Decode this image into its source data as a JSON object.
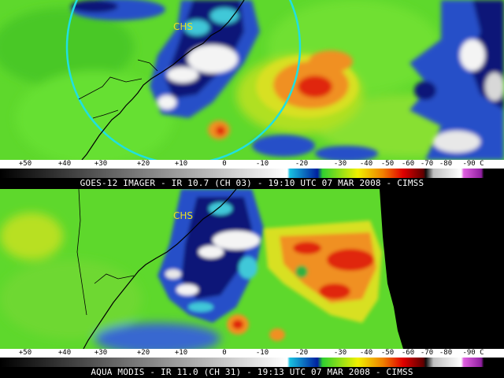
{
  "panels": [
    {
      "station_label": "CHS",
      "caption": "GOES-12 IMAGER - IR 10.7 (CH 03) - 19:10 UTC 07 MAR 2008 - CIMSS"
    },
    {
      "station_label": "CHS",
      "caption": "AQUA MODIS - IR 11.0 (CH 31) - 19:13 UTC 07 MAR 2008 - CIMSS"
    }
  ],
  "colorbar": {
    "tick_labels": [
      "+50",
      "+40",
      "+30",
      "+20",
      "+10",
      "0",
      "-10",
      "-20",
      "-30",
      "-40",
      "-50",
      "-60",
      "-70",
      "-80",
      "-90 C"
    ],
    "colors": {
      "warm_gray_start": "#000000",
      "warm_gray_end": "#ffffff",
      "cyan": "#18c0e0",
      "blue": "#0020a0",
      "green": "#30d030",
      "yellow": "#f0f000",
      "orange": "#f08000",
      "red": "#e00000",
      "dark_red": "#600000",
      "black": "#101010",
      "light_gray": "#c0c0c0",
      "white": "#ffffff",
      "magenta": "#e060e0"
    }
  },
  "imagery_colors": {
    "base_green": "#5ed82c",
    "deep_blue": "#0a1478",
    "mid_blue": "#2850c8",
    "cyan": "#40c8d8",
    "white": "#f4f4f4",
    "yellow": "#d8e020",
    "orange": "#f09020",
    "red": "#e02810",
    "no_data": "#000000",
    "radar_ring": "#20e0e0",
    "coastline": "#000000"
  }
}
